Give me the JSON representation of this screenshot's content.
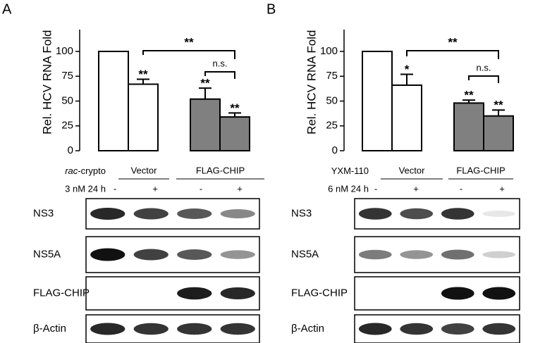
{
  "chart_data": [
    {
      "type": "bar",
      "panel": "A",
      "ylabel": "Rel. HCV RNA Fold",
      "values": [
        100,
        67,
        52,
        34
      ],
      "errors": [
        0,
        5,
        11,
        4
      ],
      "colors": [
        "#ffffff",
        "#ffffff",
        "#808080",
        "#808080"
      ],
      "significance": [
        null,
        "**",
        "**",
        "**"
      ],
      "comparisons": [
        "**",
        "n.s."
      ],
      "ylim": [
        0,
        122
      ],
      "yticks": [
        0,
        25,
        50,
        75,
        100
      ],
      "treatment": {
        "agent_italic": "rac",
        "agent": "-crypto",
        "dose": "3 nM 24 h",
        "groups": [
          "Vector",
          "FLAG-CHIP"
        ],
        "signs": [
          "-",
          "+",
          "-",
          "+"
        ]
      },
      "blots": [
        "NS3",
        "NS5A",
        "FLAG-CHIP",
        "β-Actin"
      ]
    },
    {
      "type": "bar",
      "panel": "B",
      "ylabel": "Rel. HCV RNA Fold",
      "values": [
        100,
        66,
        48,
        35
      ],
      "errors": [
        0,
        11,
        3,
        6
      ],
      "colors": [
        "#ffffff",
        "#ffffff",
        "#808080",
        "#808080"
      ],
      "significance": [
        null,
        "*",
        "**",
        "**"
      ],
      "comparisons": [
        "**",
        "n.s."
      ],
      "ylim": [
        0,
        122
      ],
      "yticks": [
        0,
        25,
        50,
        75,
        100
      ],
      "treatment": {
        "agent_italic": null,
        "agent": "YXM-110",
        "dose": "6 nM 24 h",
        "groups": [
          "Vector",
          "FLAG-CHIP"
        ],
        "signs": [
          "-",
          "+",
          "-",
          "+"
        ]
      },
      "blots": [
        "NS3",
        "NS5A",
        "FLAG-CHIP",
        "β-Actin"
      ]
    }
  ]
}
